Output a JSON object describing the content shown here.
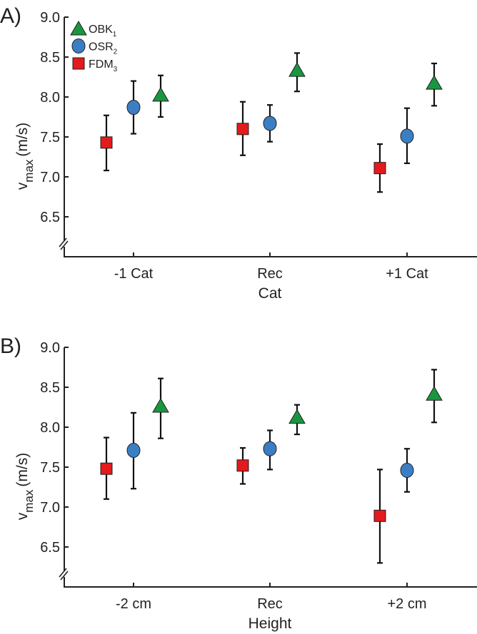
{
  "colors": {
    "OBK": "#1a9641",
    "OSR": "#3a7fc4",
    "FDM": "#e41a1c",
    "axis": "#231f20"
  },
  "chart_data": [
    {
      "type": "scatter",
      "panel_label": "A)",
      "xlabel": "Cat",
      "ylabel_main": "v",
      "ylabel_sub": "max",
      "ylabel_unit": "(m/s)",
      "ylim": [
        6.0,
        9.0
      ],
      "axis_break": true,
      "yticks": [
        "6.5",
        "7.0",
        "7.5",
        "8.0",
        "8.5",
        "9.0"
      ],
      "categories": [
        "-1 Cat",
        "Rec",
        "+1 Cat"
      ],
      "legend": {
        "placement": "top-left",
        "entries": [
          {
            "key": "OBK",
            "label": "OBK",
            "sub": "1",
            "marker": "triangle"
          },
          {
            "key": "OSR",
            "label": "OSR",
            "sub": "2",
            "marker": "circle"
          },
          {
            "key": "FDM",
            "label": "FDM",
            "sub": "3",
            "marker": "square"
          }
        ]
      },
      "series": [
        {
          "name": "FDM3",
          "key": "FDM",
          "marker": "square",
          "values": [
            7.43,
            7.6,
            7.11
          ],
          "lower": [
            7.08,
            7.27,
            6.81
          ],
          "upper": [
            7.77,
            7.94,
            7.41
          ]
        },
        {
          "name": "OSR2",
          "key": "OSR",
          "marker": "circle",
          "values": [
            7.87,
            7.67,
            7.51
          ],
          "lower": [
            7.54,
            7.44,
            7.17
          ],
          "upper": [
            8.2,
            7.9,
            7.86
          ]
        },
        {
          "name": "OBK1",
          "key": "OBK",
          "marker": "triangle",
          "values": [
            8.01,
            8.32,
            8.16
          ],
          "lower": [
            7.75,
            8.07,
            7.89
          ],
          "upper": [
            8.27,
            8.55,
            8.42
          ]
        }
      ]
    },
    {
      "type": "scatter",
      "panel_label": "B)",
      "xlabel": "Height",
      "ylabel_main": "v",
      "ylabel_sub": "max",
      "ylabel_unit": "(m/s)",
      "ylim": [
        6.0,
        9.0
      ],
      "axis_break": true,
      "yticks": [
        "6.5",
        "7.0",
        "7.5",
        "8.0",
        "8.5",
        "9.0"
      ],
      "categories": [
        "-2 cm",
        "Rec",
        "+2 cm"
      ],
      "series": [
        {
          "name": "FDM3",
          "key": "FDM",
          "marker": "square",
          "values": [
            7.48,
            7.52,
            6.89
          ],
          "lower": [
            7.1,
            7.29,
            6.3
          ],
          "upper": [
            7.87,
            7.74,
            7.47
          ]
        },
        {
          "name": "OSR2",
          "key": "OSR",
          "marker": "circle",
          "values": [
            7.71,
            7.73,
            7.46
          ],
          "lower": [
            7.23,
            7.47,
            7.19
          ],
          "upper": [
            8.18,
            7.96,
            7.73
          ]
        },
        {
          "name": "OBK1",
          "key": "OBK",
          "marker": "triangle",
          "values": [
            8.25,
            8.11,
            8.4
          ],
          "lower": [
            7.86,
            7.91,
            8.06
          ],
          "upper": [
            8.61,
            8.28,
            8.72
          ]
        }
      ]
    }
  ]
}
